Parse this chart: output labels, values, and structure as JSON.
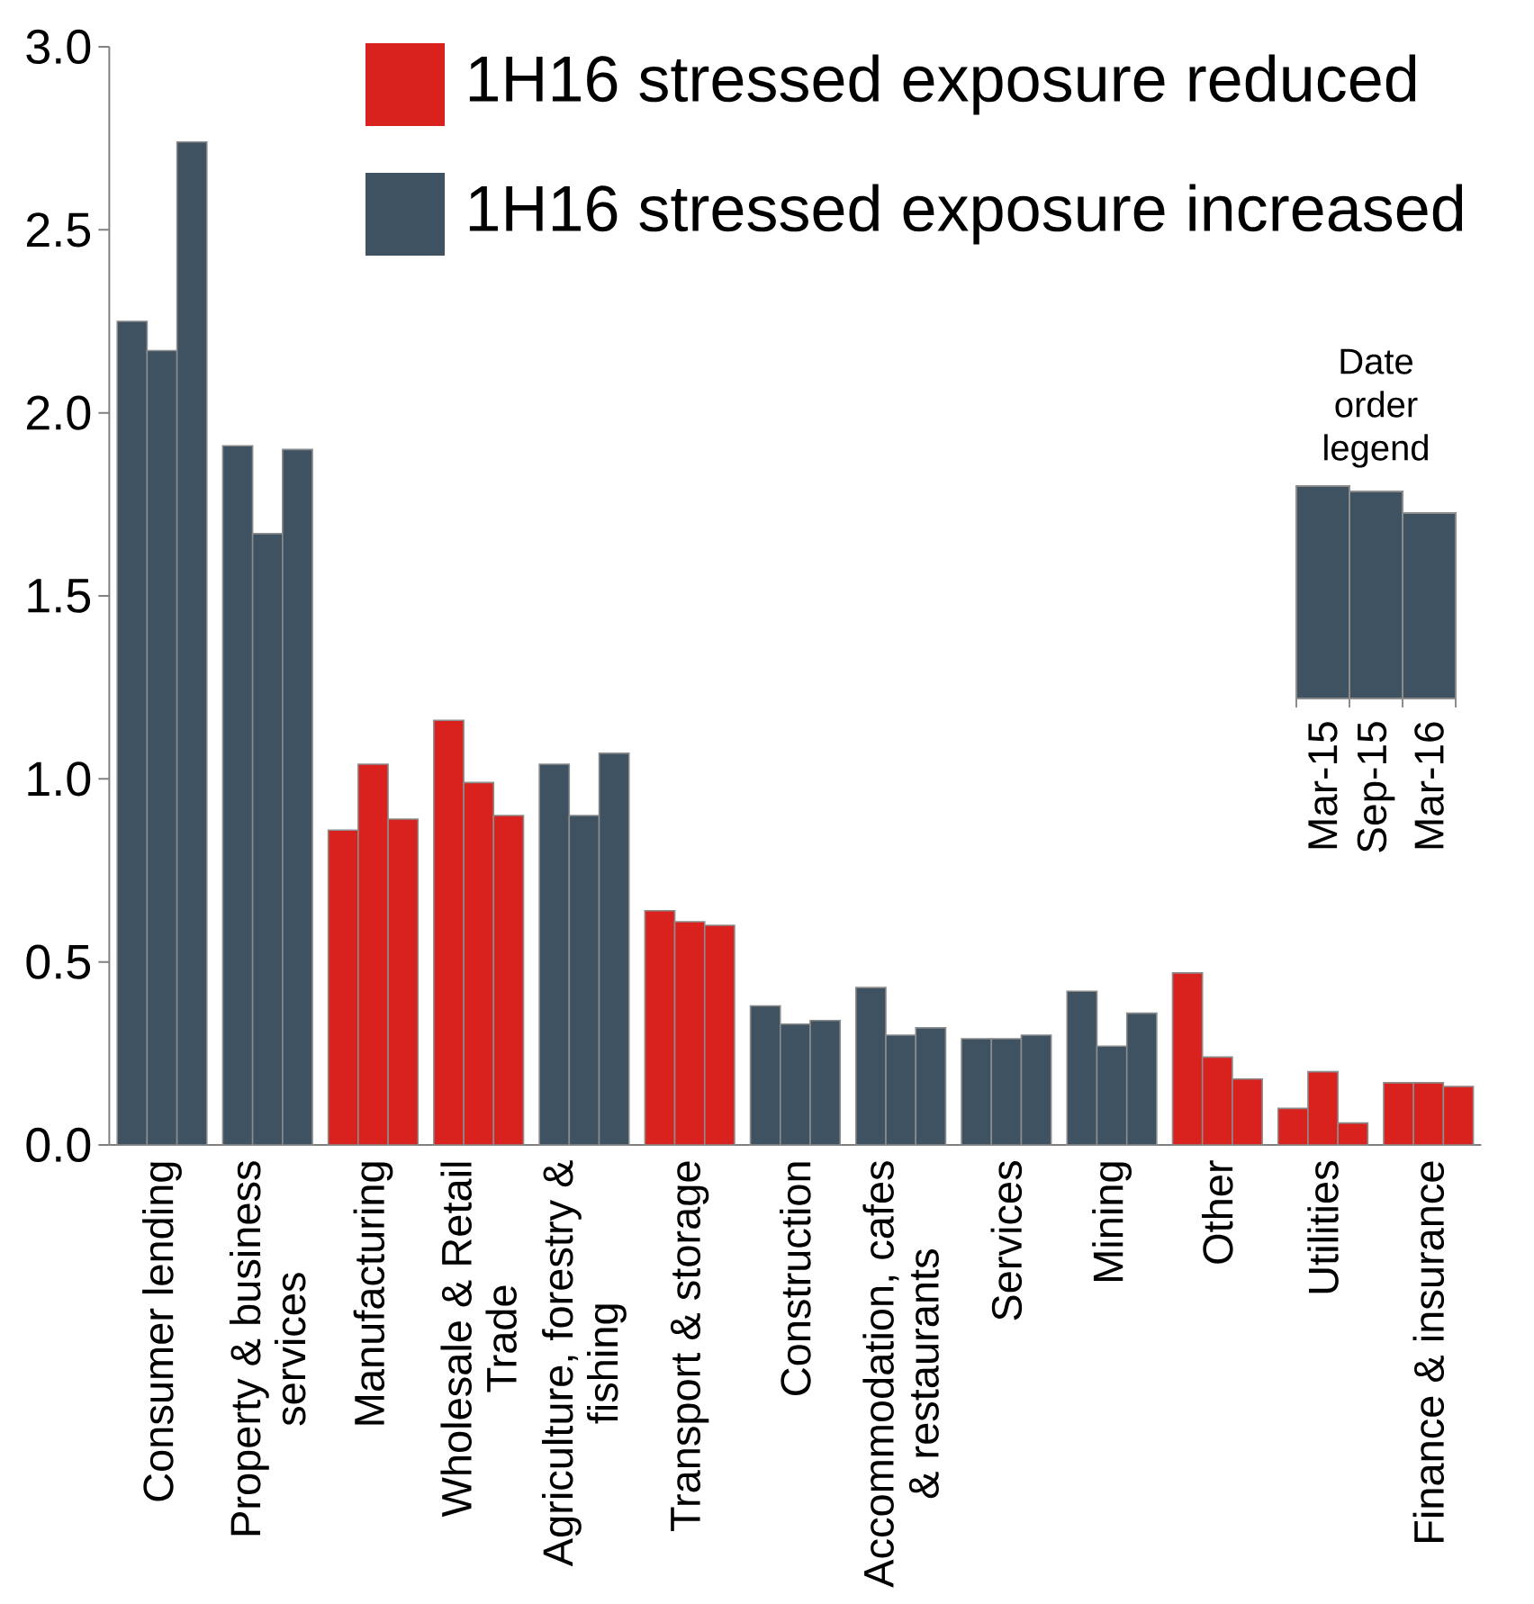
{
  "chart_data": {
    "type": "bar",
    "categories": [
      "Consumer lending",
      "Property & business services",
      "Manufacturing",
      "Wholesale & Retail Trade",
      "Agriculture, forestry & fishing",
      "Transport & storage",
      "Construction",
      "Accommodation, cafes & restaurants",
      "Services",
      "Mining",
      "Other",
      "Utilities",
      "Finance & insurance"
    ],
    "series": [
      {
        "name": "Mar-15",
        "colors": [
          "#3f5261",
          "#3f5261",
          "#d9221e",
          "#d9221e",
          "#3f5261",
          "#d9221e",
          "#3f5261",
          "#3f5261",
          "#3f5261",
          "#3f5261",
          "#d9221e",
          "#d9221e",
          "#d9221e"
        ],
        "values": [
          2.25,
          1.91,
          0.86,
          1.16,
          1.04,
          0.64,
          0.38,
          0.43,
          0.29,
          0.42,
          0.47,
          0.1,
          0.17
        ]
      },
      {
        "name": "Sep-15",
        "colors": [
          "#3f5261",
          "#3f5261",
          "#d9221e",
          "#d9221e",
          "#3f5261",
          "#d9221e",
          "#3f5261",
          "#3f5261",
          "#3f5261",
          "#3f5261",
          "#d9221e",
          "#d9221e",
          "#d9221e"
        ],
        "values": [
          2.17,
          1.67,
          1.04,
          0.99,
          0.9,
          0.61,
          0.33,
          0.3,
          0.29,
          0.27,
          0.24,
          0.2,
          0.17
        ]
      },
      {
        "name": "Mar-16",
        "colors": [
          "#3f5261",
          "#3f5261",
          "#d9221e",
          "#d9221e",
          "#3f5261",
          "#d9221e",
          "#3f5261",
          "#3f5261",
          "#3f5261",
          "#3f5261",
          "#d9221e",
          "#d9221e",
          "#d9221e"
        ],
        "values": [
          2.74,
          1.9,
          0.89,
          0.9,
          1.07,
          0.6,
          0.34,
          0.32,
          0.3,
          0.36,
          0.18,
          0.06,
          0.16
        ]
      }
    ],
    "legend": "right",
    "legend_title": "Date order legend",
    "annotations": [
      "1H16 stressed exposure reduced",
      "1H16 stressed exposure increased"
    ],
    "ylim": [
      0,
      3
    ],
    "yticks": [
      {
        "value": 0,
        "label": "0.0"
      },
      {
        "value": 0.5,
        "label": "0.5"
      },
      {
        "value": 1,
        "label": "1.0"
      },
      {
        "value": 1.5,
        "label": "1.5"
      },
      {
        "value": 2,
        "label": "2.0"
      },
      {
        "value": 2.5,
        "label": "2.5"
      },
      {
        "value": 3,
        "label": "3.0"
      }
    ],
    "grid": false
  }
}
